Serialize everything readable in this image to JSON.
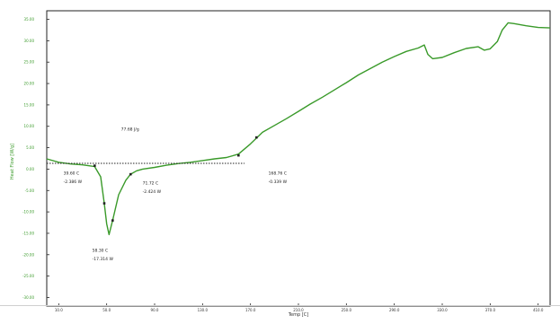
{
  "chart_data": {
    "type": "line",
    "title": "",
    "xlabel": "Temp [C]",
    "ylabel": "Heat Flow [W/g]",
    "xlim": [
      0,
      420
    ],
    "ylim": [
      -32,
      37
    ],
    "x_ticks": [
      "10.0",
      "50.0",
      "90.0",
      "130.0",
      "170.0",
      "210.0",
      "250.0",
      "290.0",
      "330.0",
      "370.0",
      "410.0"
    ],
    "x_tick_values": [
      10,
      50,
      90,
      130,
      170,
      210,
      250,
      290,
      330,
      370,
      410
    ],
    "y_ticks": [
      "35.00",
      "30.00",
      "25.00",
      "20.00",
      "15.00",
      "10.00",
      "5.00",
      "0.00",
      "-5.00",
      "-10.00",
      "-15.00",
      "-20.00",
      "-25.00",
      "-30.00"
    ],
    "y_tick_values": [
      35,
      30,
      25,
      20,
      15,
      10,
      5,
      0,
      -5,
      -10,
      -15,
      -20,
      -25,
      -30
    ],
    "grid": false,
    "series": [
      {
        "color": "#3a9a2a",
        "x": [
          0,
          10,
          20,
          30,
          40,
          45,
          48,
          50,
          52,
          55,
          60,
          66,
          70,
          75,
          80,
          90,
          100,
          110,
          120,
          130,
          140,
          150,
          160,
          170,
          180,
          190,
          200,
          210,
          220,
          230,
          240,
          250,
          260,
          270,
          280,
          290,
          300,
          310,
          315,
          318,
          322,
          330,
          340,
          350,
          360,
          365,
          370,
          376,
          380,
          385,
          390,
          400,
          410,
          420
        ],
        "y": [
          2.4,
          1.6,
          1.2,
          1.0,
          0.6,
          -1.8,
          -8.0,
          -12.8,
          -15.3,
          -12.0,
          -6.0,
          -2.6,
          -1.2,
          -0.4,
          0.0,
          0.4,
          0.9,
          1.3,
          1.6,
          2.0,
          2.4,
          2.7,
          3.5,
          5.9,
          8.6,
          10.2,
          11.8,
          13.5,
          15.2,
          16.8,
          18.5,
          20.2,
          22.0,
          23.5,
          25.0,
          26.3,
          27.5,
          28.3,
          29.0,
          26.8,
          25.8,
          26.1,
          27.2,
          28.2,
          28.6,
          27.8,
          28.1,
          29.8,
          32.5,
          34.2,
          34.0,
          33.5,
          33.1,
          33.0
        ]
      }
    ],
    "baseline": {
      "color": "#222222",
      "x": [
        0,
        165
      ],
      "y": [
        1.35,
        1.35
      ]
    },
    "markers": {
      "x": [
        40,
        48,
        55,
        70,
        160,
        175
      ],
      "y": [
        0.8,
        -8.0,
        -12.0,
        -1.2,
        3.2,
        7.4
      ]
    },
    "annotations": [
      {
        "text": "77.68 J/g",
        "x": 62,
        "y": 9.0
      },
      {
        "text": "39.60 C",
        "x": 14,
        "y": -1.3
      },
      {
        "text": "-2.386 W",
        "x": 14,
        "y": -3.3
      },
      {
        "text": "71.72 C",
        "x": 80,
        "y": -3.6
      },
      {
        "text": "-2.424 W",
        "x": 80,
        "y": -5.6
      },
      {
        "text": "58.30 C",
        "x": 38,
        "y": -19.3
      },
      {
        "text": "-17.314 W",
        "x": 38,
        "y": -21.3
      },
      {
        "text": "168.76 C",
        "x": 185,
        "y": -1.3
      },
      {
        "text": "-0.339 W",
        "x": 185,
        "y": -3.3
      }
    ]
  }
}
